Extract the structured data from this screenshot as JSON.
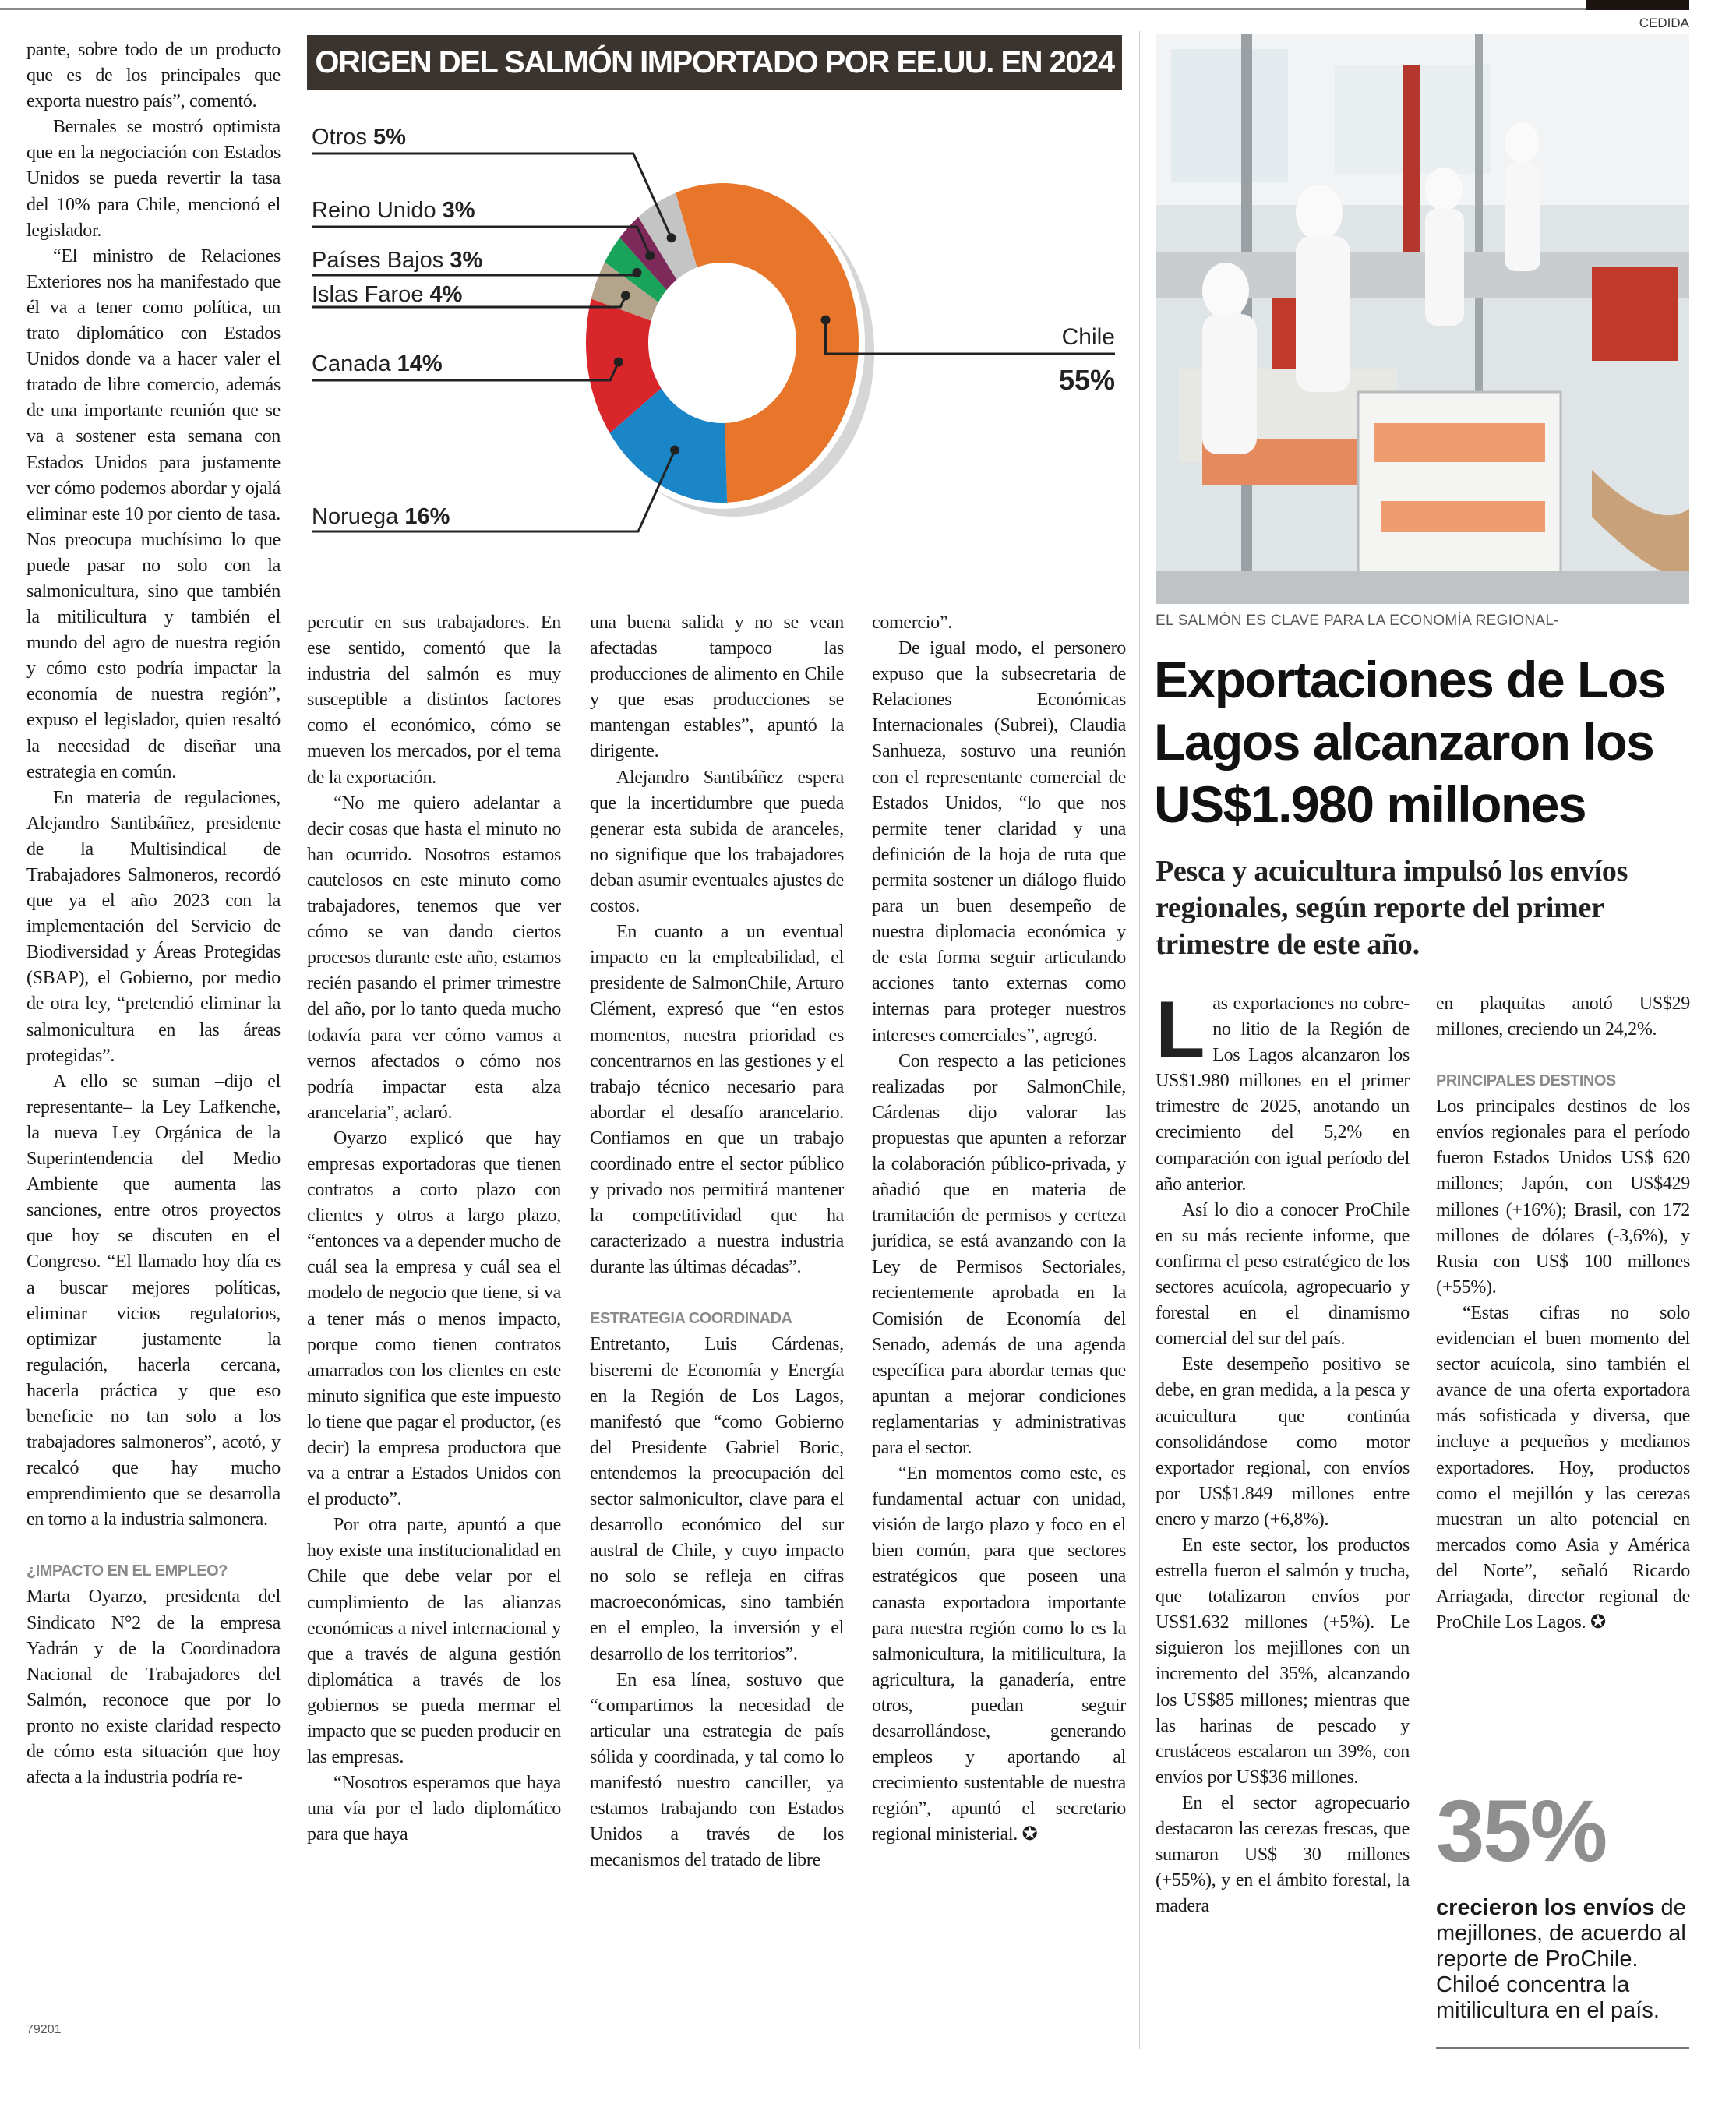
{
  "header": {
    "photo_credit": "CEDIDA"
  },
  "page_id": "79201",
  "chart_data": {
    "type": "pie",
    "variant": "donut",
    "title": "ORIGEN DEL SALMÓN IMPORTADO POR EE.UU. EN 2024",
    "categories": [
      "Chile",
      "Noruega",
      "Canada",
      "Islas Faroe",
      "Países Bajos",
      "Reino Unido",
      "Otros"
    ],
    "values": [
      55,
      16,
      14,
      4,
      3,
      3,
      5
    ],
    "labels": [
      "55%",
      "16%",
      "14%",
      "4%",
      "3%",
      "3%",
      "5%"
    ],
    "colors": [
      "#e8762a",
      "#1a86c8",
      "#d9262a",
      "#b5a48c",
      "#1aa35a",
      "#7d2a5a",
      "#c4c4c4"
    ],
    "unit": "%"
  },
  "left_article": {
    "columns": [
      [
        {
          "type": "p-cont",
          "text": "pante, sobre todo de un producto que es de los principales que exporta nuestro país”, comentó."
        },
        {
          "type": "p",
          "text": "Bernales se mostró optimista que en la negociación con Estados Unidos se pueda revertir la tasa del 10% para Chile, mencionó el legislador."
        },
        {
          "type": "p",
          "text": "“El ministro de Relaciones Exteriores nos ha manifestado que él va a tener como política, un trato diplomático con Estados Unidos donde va a hacer valer el tratado de libre comercio, además de una importante reunión que se va a sostener esta semana con Estados Unidos para justamente ver cómo podemos abordar y ojalá eliminar este 10 por ciento de tasa. Nos preocupa muchísimo lo que puede pasar no solo con la salmonicultura, sino que también la mitilicultura y también el mundo del agro de nuestra región y cómo esto podría impactar la economía de nuestra región”, expuso el legislador, quien resaltó la necesidad de diseñar una estrategia en común."
        },
        {
          "type": "p",
          "text": "En materia de regulaciones, Alejandro Santibáñez, presidente de la Multisindical de Trabajadores Salmoneros, recordó que ya el año 2023 con la implementación del Servicio de Biodiversidad y Áreas Protegidas (SBAP), el Gobierno, por medio de otra ley, “pretendió eliminar la salmonicultura en las áreas protegidas”."
        },
        {
          "type": "p",
          "text": "A ello se suman –dijo el representante– la Ley Lafkenche, la nueva Ley Orgánica de la Superintendencia del Medio Ambiente que aumenta las sanciones, entre otros proyectos que hoy se discuten en el Congreso. “El llamado hoy día es a buscar mejores políticas, eliminar vicios regulatorios, optimizar justamente la regulación, hacerla cercana, hacerla práctica y que eso beneficie no tan solo a los trabajadores salmoneros”, acotó, y recalcó que hay mucho emprendimiento que se desarrolla en torno a la industria salmonera."
        },
        {
          "type": "h",
          "text": "¿IMPACTO EN EL EMPLEO?"
        },
        {
          "type": "p-cont",
          "text": "Marta Oyarzo, presidenta del Sindicato N°2 de la empresa Yadrán y de la Coordinadora Nacional de Trabajadores del Salmón, reconoce que por lo pronto no existe claridad respecto de cómo esta situación que hoy afecta a la industria podría re-"
        }
      ],
      [
        {
          "type": "p-cont",
          "text": "percutir en sus trabajadores. En ese sentido, comentó que la industria del salmón es muy susceptible a distintos factores como el económico, cómo se mueven los mercados, por el tema de la exportación."
        },
        {
          "type": "p",
          "text": "“No me quiero adelantar a decir cosas que hasta el minuto no han ocurrido. Nosotros estamos cautelosos en este minuto como trabajadores, tenemos que ver cómo se van dando ciertos procesos durante este año, estamos recién pasando el primer trimestre del año, por lo tanto queda mucho todavía para ver cómo vamos a vernos afectados o cómo nos podría impactar esta alza arancelaria”, aclaró."
        },
        {
          "type": "p",
          "text": "Oyarzo explicó que hay empresas exportadoras que tienen contratos a corto plazo con clientes y otros a largo plazo, “entonces va a depender mucho de cuál sea la empresa y cuál sea el modelo de negocio que tiene, si va a tener más o menos impacto, porque como tienen contratos amarrados con los clientes en este minuto significa que este impuesto lo tiene que pagar el productor, (es decir) la empresa productora que va a entrar a Estados Unidos con el producto”."
        },
        {
          "type": "p",
          "text": "Por otra parte, apuntó a que hoy existe una institucionalidad en Chile que debe velar por el cumplimiento de las alianzas económicas a nivel internacional y que a través de alguna gestión diplomática a través de los gobiernos se pueda mermar el impacto que se pueden producir en las empresas."
        },
        {
          "type": "p",
          "text": "“Nosotros esperamos que haya una vía por el lado diplomático para que haya"
        }
      ],
      [
        {
          "type": "p-cont",
          "text": "una buena salida y no se vean afectadas tampoco las producciones de alimento en Chile y que esas producciones se mantengan estables”, apuntó la dirigente."
        },
        {
          "type": "p",
          "text": "Alejandro Santibáñez espera que la incertidumbre que pueda generar esta subida de aranceles, no signifique que los trabajadores deban asumir eventuales ajustes de costos."
        },
        {
          "type": "p",
          "text": "En cuanto a un eventual impacto en la empleabilidad, el presidente de SalmonChile, Arturo Clément, expresó que “en estos momentos, nuestra prioridad es concentrarnos en las gestiones y el trabajo técnico necesario para abordar el desafío arancelario. Confiamos en que un trabajo coordinado entre el sector público y privado nos permitirá mantener la competitividad que ha caracterizado a nuestra industria durante las últimas décadas”."
        },
        {
          "type": "h",
          "text": "ESTRATEGIA COORDINADA"
        },
        {
          "type": "p-cont",
          "text": "Entretanto, Luis Cárdenas, biseremi de Economía y Energía en la Región de Los Lagos, manifestó que “como Gobierno del Presidente Gabriel Boric, entendemos la preocupación del sector salmonicultor, clave para el desarrollo económico del sur austral de Chile, y cuyo impacto no solo se refleja en cifras macroeconómicas, sino también en el empleo, la inversión y el desarrollo de los territorios”."
        },
        {
          "type": "p",
          "text": "En esa línea, sostuvo que “compartimos la necesidad de articular una estrategia de país sólida y coordinada, y tal como lo manifestó nuestro canciller, ya estamos trabajando con Estados Unidos a través de los mecanismos del tratado de libre"
        }
      ],
      [
        {
          "type": "p-cont",
          "text": "comercio”."
        },
        {
          "type": "p",
          "text": "De igual modo, el personero expuso que la subsecretaria de Relaciones Económicas Internacionales (Subrei), Claudia Sanhueza, sostuvo una reunión con el representante comercial de Estados Unidos, “lo que nos permite tener claridad y una definición de la hoja de ruta que permita sostener un diálogo fluido para un buen desempeño de nuestra diplomacia económica y de esta forma seguir articulando acciones tanto externas como internas para proteger nuestros intereses comerciales”, agregó."
        },
        {
          "type": "p",
          "text": "Con respecto a las peticiones realizadas por SalmonChile, Cárdenas dijo valorar las propuestas que apunten a reforzar la colaboración público-privada, y añadió que en materia de tramitación de permisos y certeza jurídica, se está avanzando con la Ley de Permisos Sectoriales, recientemente aprobada en la Comisión de Economía del Senado, además de una agenda específica para abordar temas que apuntan a mejorar condiciones reglamentarias y administrativas para el sector."
        },
        {
          "type": "p",
          "text": "“En momentos como este, es fundamental actuar con unidad, visión de largo plazo y foco en el bien común, para que sectores estratégicos que poseen una canasta exportadora importante para nuestra región como lo es la salmonicultura, la mitilicultura, la agricultura, la ganadería, entre otros, puedan seguir desarrollándose, generando empleos y aportando al crecimiento sustentable de nuestra región”, apuntó el secretario regional ministerial. ✪"
        }
      ]
    ]
  },
  "right_article": {
    "photo_caption": "EL SALMÓN ES CLAVE PARA LA ECONOMÍA REGIONAL-",
    "headline": "Exportaciones de Los Lagos alcanzaron los US$1.980 millones",
    "deck": "Pesca y acuicultura impulsó los envíos regionales, según reporte del primer trimestre de este año.",
    "drop_cap": "L",
    "columns": [
      [
        {
          "type": "first",
          "text": "as exportaciones no cobre-no litio de la Región de Los Lagos alcanzaron los US$1.980 millones en el primer trimestre de 2025, anotando un crecimiento del 5,2% en comparación con igual período del año anterior."
        },
        {
          "type": "p",
          "text": "Así lo dio a conocer ProChile en su más reciente informe, que confirma el peso estratégico de los sectores acuícola, agropecuario y forestal en el dinamismo comercial del sur del país."
        },
        {
          "type": "p",
          "text": "Este desempeño positivo se debe, en gran medida, a la pesca y acuicultura que continúa consolidándose como motor exportador regional, con envíos por US$1.849 millones entre enero y marzo (+6,8%)."
        },
        {
          "type": "p",
          "text": "En este sector, los productos estrella fueron el salmón y trucha, que totalizaron envíos por US$1.632 millones (+5%). Le siguieron los mejillones con un incremento del 35%, alcanzando los US$85 millones; mientras que las harinas de pescado y crustáceos escalaron un 39%, con envíos por US$36 millones."
        },
        {
          "type": "p",
          "text": "En el sector agropecuario destacaron las cerezas frescas, que sumaron US$ 30 millones (+55%), y en el ámbito forestal, la madera"
        }
      ],
      [
        {
          "type": "p-cont",
          "text": "en plaquitas anotó US$29 millones, creciendo un 24,2%."
        },
        {
          "type": "h",
          "text": "PRINCIPALES DESTINOS"
        },
        {
          "type": "p-cont",
          "text": "Los principales destinos de los envíos regionales para el período fueron Estados Unidos US$ 620 millones; Japón, con US$429 millones (+16%); Brasil, con 172 millones de dólares (-3,6%), y Rusia con US$ 100 millones (+55%)."
        },
        {
          "type": "p",
          "text": "“Estas cifras no solo evidencian el buen momento del sector acuícola, sino también el avance de una oferta exportadora más sofisticada y diversa, que incluye a pequeños y medianos exportadores. Hoy, productos como el mejillón y las cerezas muestran un alto potencial en mercados como Asia y América del Norte”, señaló Ricardo Arriagada, director regional de ProChile Los Lagos. ✪"
        }
      ]
    ],
    "stat": {
      "value": "35%",
      "caption_bold": "crecieron los envíos",
      "caption_rest": " de mejillones, de acuerdo al reporte de ProChile. Chiloé concentra la mitilicultura en el país."
    }
  }
}
